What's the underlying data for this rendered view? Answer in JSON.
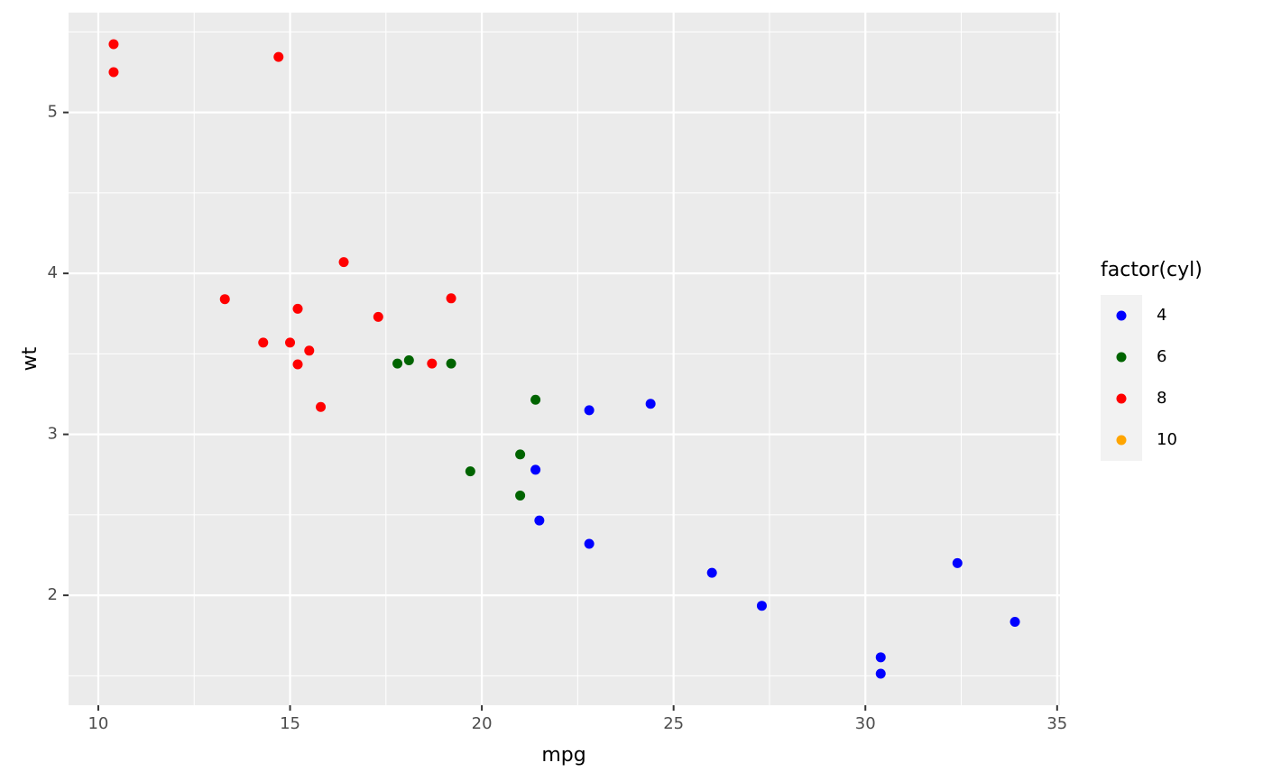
{
  "chart_data": {
    "type": "scatter",
    "x_label": "mpg",
    "y_label": "wt",
    "legend_title": "factor(cyl)",
    "legend_position": "right",
    "grid": true,
    "xlim": [
      9.225,
      35.075
    ],
    "ylim": [
      1.317,
      5.62
    ],
    "xticks": [
      10,
      15,
      20,
      25,
      30,
      35
    ],
    "yticks": [
      2,
      3,
      4,
      5
    ],
    "x_minor_ticks": [
      12.5,
      17.5,
      22.5,
      27.5,
      32.5
    ],
    "y_minor_ticks": [
      1.5,
      2.5,
      3.5,
      4.5,
      5.5
    ],
    "series": [
      {
        "name": "4",
        "color": "#0000ff",
        "x": [
          22.8,
          24.4,
          22.8,
          32.4,
          30.4,
          33.9,
          21.5,
          27.3,
          26.0,
          30.4,
          21.4
        ],
        "values": [
          2.32,
          3.19,
          3.15,
          2.2,
          1.615,
          1.835,
          2.465,
          1.935,
          2.14,
          1.513,
          2.78
        ]
      },
      {
        "name": "6",
        "color": "#006400",
        "x": [
          21.0,
          21.0,
          21.4,
          18.1,
          19.2,
          17.8,
          19.7
        ],
        "values": [
          2.62,
          2.875,
          3.215,
          3.46,
          3.44,
          3.44,
          2.77
        ]
      },
      {
        "name": "8",
        "color": "#ff0000",
        "x": [
          18.7,
          14.3,
          16.4,
          17.3,
          15.2,
          10.4,
          10.4,
          14.7,
          15.5,
          15.2,
          13.3,
          19.2,
          15.8,
          15.0
        ],
        "values": [
          3.44,
          3.57,
          4.07,
          3.73,
          3.78,
          5.25,
          5.424,
          5.345,
          3.52,
          3.435,
          3.84,
          3.845,
          3.17,
          3.57
        ]
      },
      {
        "name": "10",
        "color": "#ffa500",
        "x": [],
        "values": []
      }
    ]
  }
}
